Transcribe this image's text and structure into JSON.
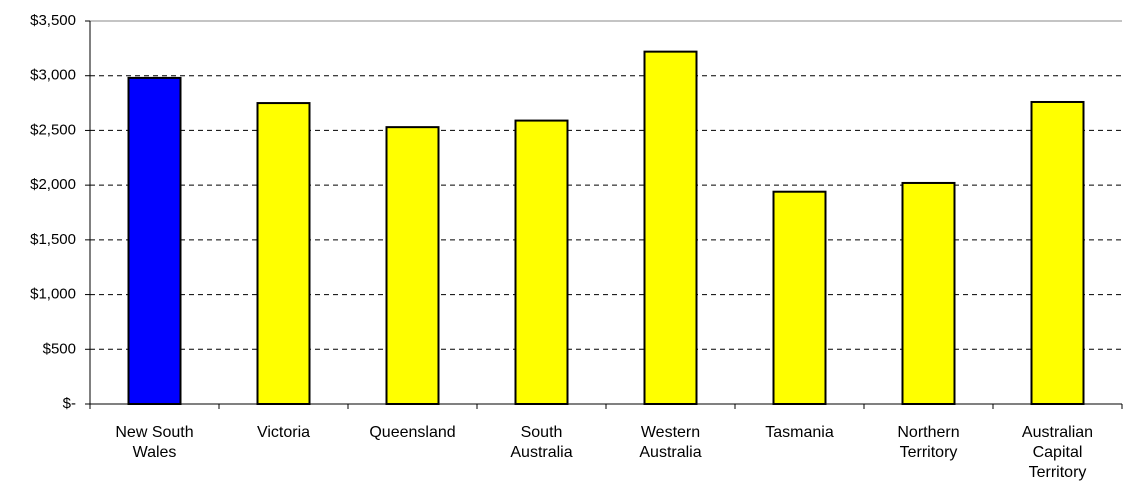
{
  "chart_data": {
    "type": "bar",
    "categories": [
      "New South\nWales",
      "Victoria",
      "Queensland",
      "South\nAustralia",
      "Western\nAustralia",
      "Tasmania",
      "Northern\nTerritory",
      "Australian\nCapital\nTerritory"
    ],
    "values": [
      2980,
      2750,
      2530,
      2590,
      3220,
      1940,
      2020,
      2760
    ],
    "colors": [
      "#0000ff",
      "#ffff00",
      "#ffff00",
      "#ffff00",
      "#ffff00",
      "#ffff00",
      "#ffff00",
      "#ffff00"
    ],
    "ylim": [
      0,
      3500
    ],
    "yticks": [
      {
        "value": 0,
        "label": "$-"
      },
      {
        "value": 500,
        "label": "$500"
      },
      {
        "value": 1000,
        "label": "$1,000"
      },
      {
        "value": 1500,
        "label": "$1,500"
      },
      {
        "value": 2000,
        "label": "$2,000"
      },
      {
        "value": 2500,
        "label": "$2,500"
      },
      {
        "value": 3000,
        "label": "$3,000"
      },
      {
        "value": 3500,
        "label": "$3,500"
      }
    ],
    "grid": true
  }
}
